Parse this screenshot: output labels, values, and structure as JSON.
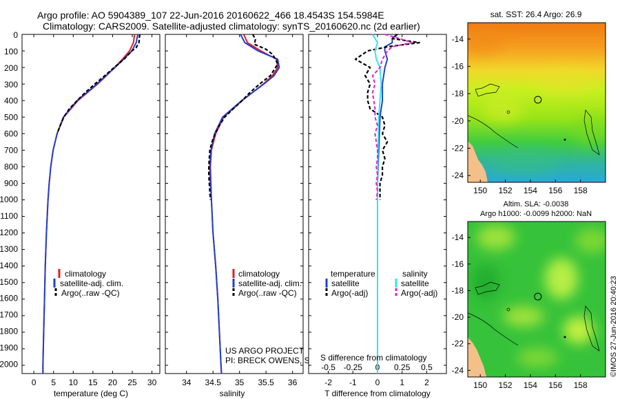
{
  "header": {
    "line1": "Argo profile: AO 5904389_107 22-Jun-2016 20160622_466 18.4543S 154.5984E",
    "line2": "Climatology: CARS2009. Satellite-adjusted climatology: synTS_20160620.nc (2d earlier)"
  },
  "colors": {
    "climatology": "#e41a1c",
    "satellite": "#1f3fd6",
    "argo": "#000000",
    "sal_satellite": "#2ee6f0",
    "sal_argo": "#e020d0"
  },
  "credits": {
    "project": "US ARGO PROJECT",
    "pi": "PI: BRECK OWENS, STEVE JAYNE, P.E. ROBBINS",
    "imos": "©IMOS 27-Jun-2016 20:40:23"
  },
  "depth_ticks": [
    "0",
    "100",
    "200",
    "300",
    "400",
    "500",
    "600",
    "700",
    "800",
    "900",
    "1000",
    "1100",
    "1200",
    "1300",
    "1400",
    "1500",
    "1600",
    "1700",
    "1800",
    "1900",
    "2000"
  ],
  "chart_data": [
    {
      "type": "line",
      "id": "temperature",
      "xlabel": "temperature (deg C)",
      "ylabel": "depth",
      "xlim": [
        -3,
        32
      ],
      "ylim": [
        2050,
        0
      ],
      "xticks": [
        0,
        5,
        10,
        15,
        20,
        25,
        30
      ],
      "xtick_labels": [
        "0",
        "5",
        "10",
        "15",
        "20",
        "25",
        "30"
      ],
      "legend": [
        "climatology",
        "satellite-adj. clim.",
        "Argo(..raw -QC)"
      ],
      "series": [
        {
          "name": "climatology",
          "depth": [
            0,
            50,
            100,
            150,
            200,
            250,
            300,
            400,
            500,
            600,
            700,
            800,
            900,
            1000,
            1200,
            1400,
            1600,
            1800,
            2000,
            2050
          ],
          "values": [
            25.6,
            25.3,
            24.3,
            22.5,
            20.5,
            18.4,
            16.2,
            11.2,
            7.6,
            5.9,
            4.9,
            4.3,
            3.9,
            3.6,
            3.2,
            2.9,
            2.7,
            2.5,
            2.3,
            2.3
          ]
        },
        {
          "name": "satellite-adj. clim.",
          "depth": [
            0,
            50,
            100,
            150,
            200,
            250,
            300,
            400,
            500,
            600,
            700,
            800,
            900,
            1000,
            1200,
            1400,
            1600,
            1800,
            2000,
            2050
          ],
          "values": [
            26.4,
            26.0,
            24.9,
            22.8,
            20.6,
            18.3,
            16.0,
            11.0,
            7.5,
            5.9,
            4.9,
            4.3,
            3.9,
            3.6,
            3.2,
            2.9,
            2.7,
            2.5,
            2.3,
            2.3
          ]
        },
        {
          "name": "Argo",
          "depth": [
            0,
            20,
            50,
            80,
            100,
            150,
            200,
            250,
            300,
            350,
            400,
            450,
            500,
            550,
            600
          ],
          "values": [
            26.9,
            26.8,
            26.7,
            26.0,
            24.9,
            22.9,
            20.4,
            18.0,
            15.5,
            13.1,
            11.0,
            9.0,
            7.6,
            6.7,
            5.9
          ]
        }
      ]
    },
    {
      "type": "line",
      "id": "salinity",
      "xlabel": "salinity",
      "ylabel": "depth",
      "xlim": [
        33.6,
        36.2
      ],
      "ylim": [
        2050,
        0
      ],
      "xticks": [
        34,
        34.5,
        35,
        35.5,
        36
      ],
      "xtick_labels": [
        "34",
        "34.5",
        "35",
        "35.5",
        "36"
      ],
      "legend": [
        "climatology",
        "satellite-adj. clim.",
        "Argo(..raw -QC)"
      ],
      "series": [
        {
          "name": "climatology",
          "depth": [
            0,
            50,
            100,
            150,
            200,
            250,
            300,
            400,
            500,
            600,
            700,
            800,
            900,
            1000,
            1200,
            1400,
            1600,
            1800,
            2000,
            2050
          ],
          "values": [
            35.08,
            35.15,
            35.4,
            35.7,
            35.72,
            35.62,
            35.45,
            35.05,
            34.7,
            34.55,
            34.47,
            34.45,
            34.46,
            34.47,
            34.5,
            34.55,
            34.59,
            34.62,
            34.65,
            34.66
          ]
        },
        {
          "name": "satellite-adj. clim.",
          "depth": [
            0,
            50,
            100,
            150,
            200,
            250,
            300,
            400,
            500,
            600,
            700,
            800,
            900,
            1000,
            1200,
            1400,
            1600,
            1800,
            2000,
            2050
          ],
          "values": [
            35.02,
            35.1,
            35.35,
            35.72,
            35.75,
            35.65,
            35.46,
            35.04,
            34.68,
            34.53,
            34.46,
            34.44,
            34.45,
            34.47,
            34.5,
            34.55,
            34.59,
            34.62,
            34.65,
            34.66
          ]
        },
        {
          "name": "Argo",
          "depth": [
            0,
            30,
            60,
            90,
            120,
            150,
            180,
            210,
            250,
            300,
            350,
            400,
            450,
            500,
            550,
            600,
            650,
            700,
            750,
            800,
            850,
            900,
            950,
            1000
          ],
          "values": [
            35.25,
            35.3,
            35.28,
            35.5,
            35.62,
            35.68,
            35.72,
            35.66,
            35.58,
            35.38,
            35.2,
            35.05,
            34.88,
            34.72,
            34.62,
            34.54,
            34.48,
            34.44,
            34.43,
            34.42,
            34.42,
            34.43,
            34.44,
            34.45
          ]
        }
      ]
    },
    {
      "type": "line",
      "id": "difference",
      "xlabel": "T difference from climatology",
      "title_top": "S difference from climatology",
      "ylabel": "depth",
      "xlim": [
        -2.8,
        2.8
      ],
      "ylim": [
        2050,
        0
      ],
      "xticks": [
        -2,
        -1,
        0,
        1,
        2
      ],
      "xtick_labels": [
        "-2",
        "-1",
        "0",
        "1",
        "2"
      ],
      "top_ticks": [
        -2,
        -1,
        0,
        1,
        2
      ],
      "top_tick_labels": [
        "-0.5",
        "-0.25",
        "0",
        "0.25",
        "0.5"
      ],
      "legend_headers": [
        "temperature",
        "salinity"
      ],
      "legend": [
        "satellite",
        "Argo(-adj)",
        "satellite",
        "Argo(-adj)"
      ],
      "series": [
        {
          "name": "temperature satellite",
          "depth": [
            0,
            25,
            50,
            75,
            100,
            150,
            200,
            300,
            400,
            500,
            700,
            900,
            1200,
            2050
          ],
          "values": [
            0.8,
            0.6,
            0.6,
            0.3,
            0.3,
            0.4,
            0.3,
            0.2,
            0.2,
            0.1,
            0.05,
            0,
            0,
            0
          ]
        },
        {
          "name": "temperature Argo(-adj)",
          "depth": [
            0,
            25,
            50,
            75,
            100,
            150,
            200,
            250,
            300,
            350,
            400,
            450,
            500,
            550,
            600,
            650,
            700,
            750,
            800,
            850,
            900,
            950,
            1000
          ],
          "values": [
            0.8,
            0.6,
            1.7,
            0.4,
            -0.4,
            -0.9,
            -0.3,
            -0.5,
            -0.3,
            -0.4,
            -0.4,
            -0.3,
            0.2,
            0.3,
            0.2,
            0.4,
            0.2,
            0.3,
            0.2,
            0.2,
            0.1,
            0.1,
            0.1
          ]
        },
        {
          "name": "salinity satellite",
          "depth": [
            0,
            25,
            50,
            75,
            100,
            150,
            200,
            300,
            400,
            500,
            700,
            900,
            1200,
            2050
          ],
          "values": [
            -0.2,
            -0.1,
            0.0,
            -0.05,
            -0.1,
            -0.05,
            0.1,
            0.15,
            0.1,
            0.05,
            0.02,
            0,
            0,
            0
          ]
        },
        {
          "name": "salinity Argo(-adj)",
          "depth": [
            0,
            25,
            50,
            75,
            100,
            150,
            200,
            250,
            300,
            350,
            400,
            450,
            500,
            550,
            600,
            650,
            700,
            750,
            800,
            850,
            900,
            950,
            1000
          ],
          "values": [
            0.3,
            0.9,
            1.4,
            0.6,
            0.4,
            0.2,
            0.1,
            -0.2,
            -0.1,
            -0.2,
            -0.15,
            -0.1,
            -0.1,
            0.0,
            -0.1,
            -0.05,
            0.0,
            0.0,
            -0.05,
            0.0,
            -0.05,
            0.0,
            -0.05
          ]
        }
      ]
    },
    {
      "type": "heatmap",
      "id": "sst_map",
      "title": "sat. SST: 26.4 Argo: 26.9",
      "xlim": [
        149,
        160
      ],
      "ylim": [
        -24.5,
        -12.8
      ],
      "xticks": [
        150,
        152,
        154,
        156,
        158
      ],
      "xtick_labels": [
        "150",
        "152",
        "154",
        "156",
        "158"
      ],
      "yticks": [
        -14,
        -16,
        -18,
        -20,
        -22,
        -24
      ],
      "ytick_labels": [
        "-14",
        "-16",
        "-18",
        "-20",
        "-22",
        "-24"
      ],
      "float_position": [
        154.6,
        -18.45
      ]
    },
    {
      "type": "heatmap",
      "id": "sla_map",
      "title": "Altim. SLA: -0.0038",
      "title2": "Argo h1000: -0.0099 h2000: NaN",
      "xlim": [
        149,
        160
      ],
      "ylim": [
        -24.5,
        -12.8
      ],
      "xticks": [
        150,
        152,
        154,
        156,
        158
      ],
      "xtick_labels": [
        "150",
        "152",
        "154",
        "156",
        "158"
      ],
      "yticks": [
        -14,
        -16,
        -18,
        -20,
        -22,
        -24
      ],
      "ytick_labels": [
        "-14",
        "-16",
        "-18",
        "-20",
        "-22",
        "-24"
      ],
      "float_position": [
        154.6,
        -18.45
      ]
    }
  ]
}
